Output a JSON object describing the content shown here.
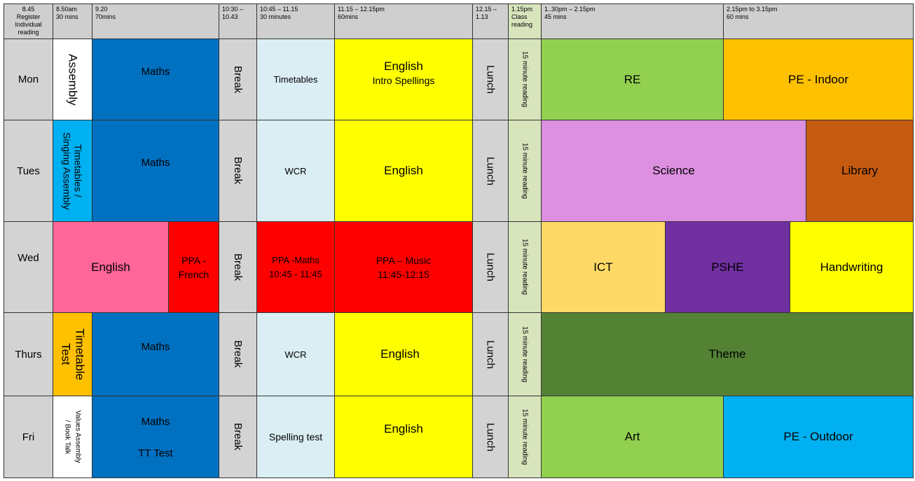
{
  "header": [
    {
      "line1": "8.45",
      "line2": "Register",
      "line3": "Individual",
      "line4": "reading"
    },
    {
      "line1": "8.50am",
      "line2": "30 mins"
    },
    {
      "line1": "9.20",
      "line2": "70mins"
    },
    {
      "line1": "10:30 –",
      "line2": "10.43"
    },
    {
      "line1": "10:45 – 11.15",
      "line2": "30 minutes"
    },
    {
      "line1": "11.15 – 12.15pm",
      "line2": "60mins"
    },
    {
      "line1": "12.15 –",
      "line2": "1.13"
    },
    {
      "line1": "1.15pm",
      "line2": "Class",
      "line3": "reading"
    },
    {
      "line1": "1..30pm – 2.15pm",
      "line2": "45  mins"
    },
    {
      "line1": "2.15pm to 3.15pm",
      "line2": "60 mins"
    }
  ],
  "days": {
    "mon": "Mon",
    "tue": "Tues",
    "wed": "Wed",
    "thu": "Thurs",
    "fri": "Fri"
  },
  "mon": {
    "assembly": "Assembly",
    "maths": "Maths",
    "break": "Break",
    "timetables": "Timetables",
    "english": "English",
    "english_sub": "Intro Spellings",
    "lunch": "Lunch",
    "reading": "15 minute reading",
    "re": "RE",
    "pe": "PE - Indoor"
  },
  "tue": {
    "assembly": "Timetables /\nSinging Assembly",
    "maths": "Maths",
    "break": "Break",
    "wcr": "WCR",
    "english": "English",
    "lunch": "Lunch",
    "reading": "15 minute reading",
    "science": "Science",
    "library": "Library"
  },
  "wed": {
    "english": "English",
    "ppa_french_1": "PPA -",
    "ppa_french_2": "French",
    "break": "Break",
    "ppa_maths_1": "PPA -Maths",
    "ppa_maths_2": "10:45 - 11:45",
    "ppa_music_1": "PPA – Music",
    "ppa_music_2": "11:45-12:15",
    "lunch": "Lunch",
    "reading": "15 minute reading",
    "ict": "ICT",
    "pshe": "PSHE",
    "handwriting": "Handwriting"
  },
  "thu": {
    "test": "Timetable\nTest",
    "maths": "Maths",
    "break": "Break",
    "wcr": "WCR",
    "english": "English",
    "lunch": "Lunch",
    "reading": "15 minute reading",
    "theme": "Theme"
  },
  "fri": {
    "assembly": "Values Assembly\n/ Book Talk",
    "maths": "Maths",
    "tt_test": "TT Test",
    "break": "Break",
    "spelling": "Spelling test",
    "english": "English",
    "lunch": "Lunch",
    "reading": "15 minute reading",
    "art": "Art",
    "pe": "PE - Outdoor"
  },
  "colors": {
    "white": "#ffffff",
    "blue": "#0070c0",
    "lightblue": "#daeef3",
    "yellow": "#ffff00",
    "grey": "#d3d3d3",
    "reading": "#d8e4bc",
    "green": "#92d050",
    "orange": "#ffc000",
    "skyblue": "#00b0f0",
    "pink": "#dd8fe0",
    "brown": "#c55a11",
    "rose": "#ff6699",
    "red": "#ff0000",
    "sand": "#ffd966",
    "purple": "#7030a0",
    "olive": "#548235"
  }
}
